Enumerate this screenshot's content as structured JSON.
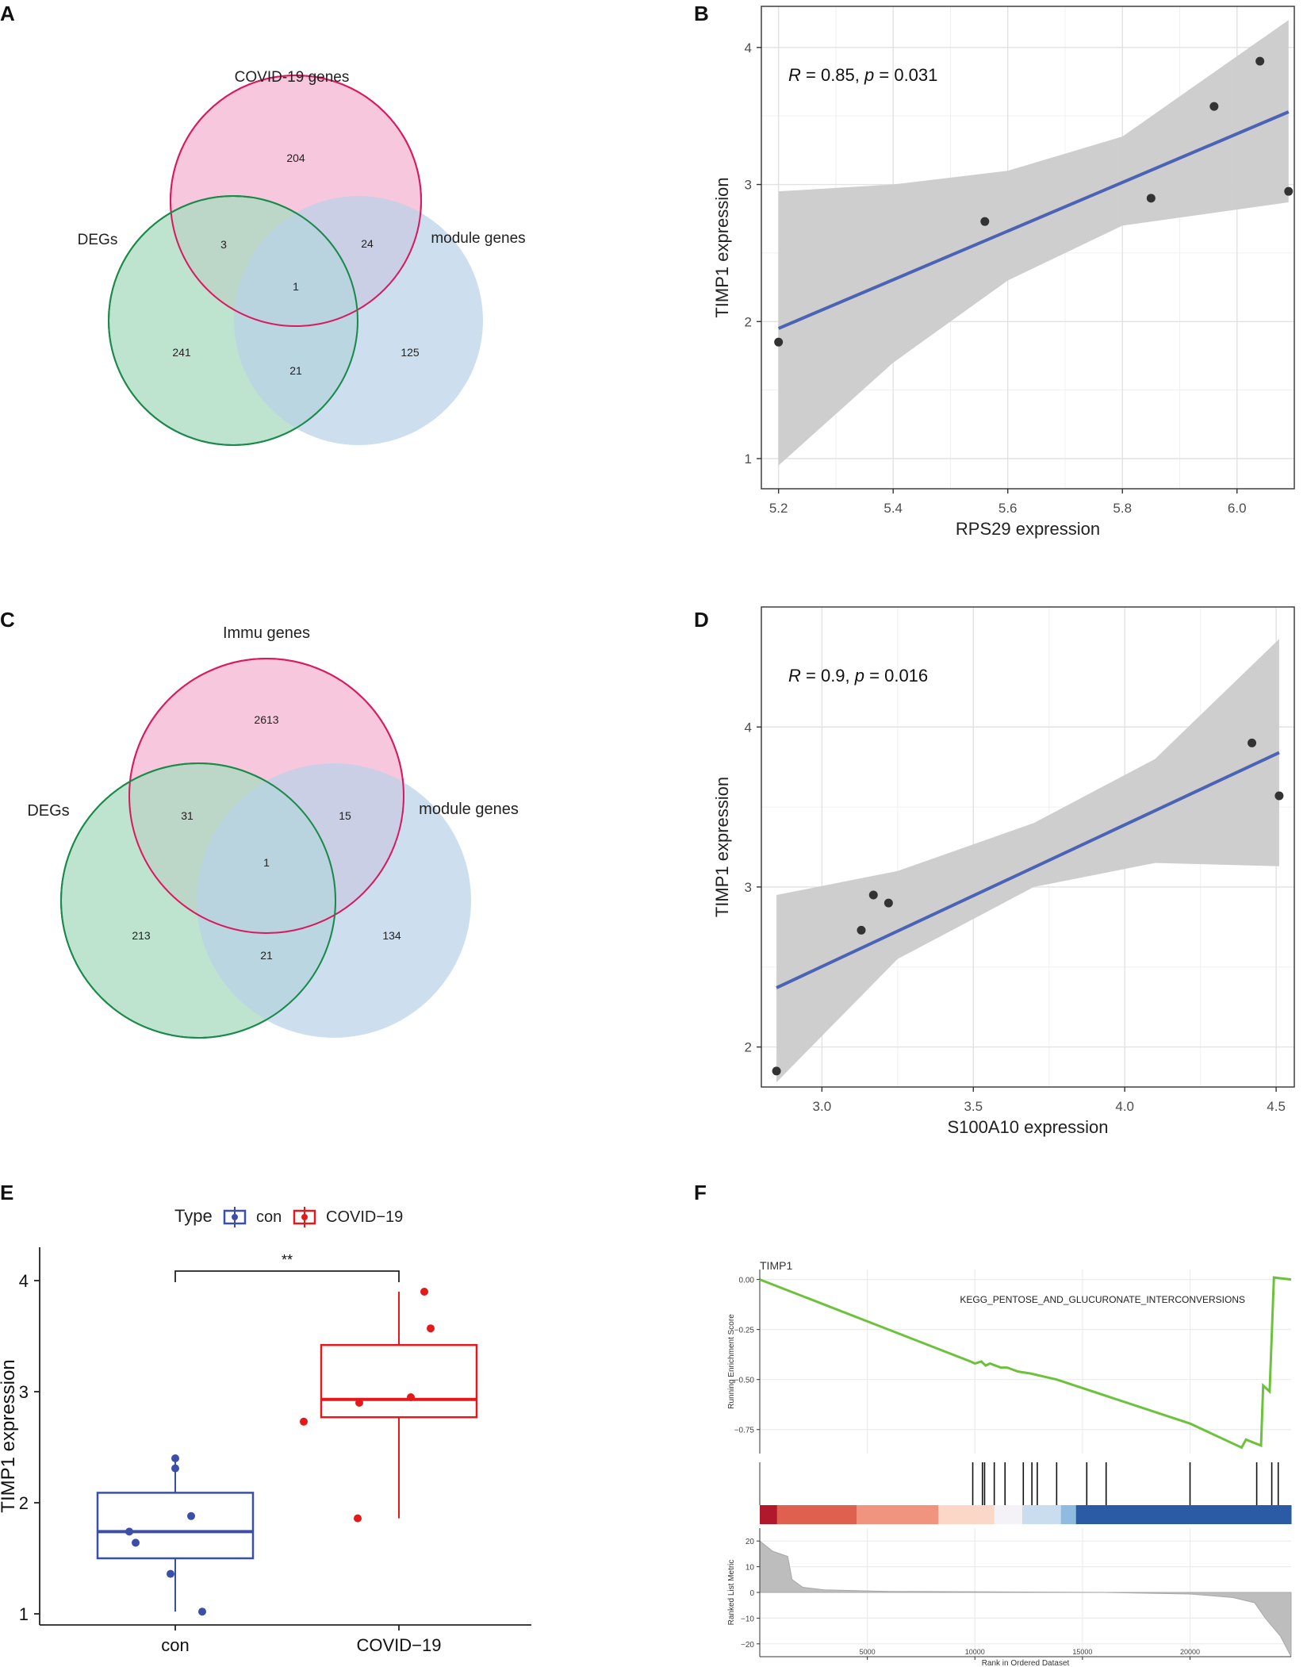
{
  "panel_labels": [
    "A",
    "B",
    "C",
    "D",
    "E",
    "F"
  ],
  "colors": {
    "venn_pink": "#f4b6d2",
    "venn_pink_stroke": "#d81b60",
    "venn_green": "#a8dbc0",
    "venn_green_stroke": "#1a8a4a",
    "venn_blue": "#b8d2e8",
    "fit_line": "#4a63b5",
    "ci_band": "#cbcbcb",
    "point": "#333333",
    "box_con": "#3b4fa8",
    "box_covid": "#e31a1c",
    "gsea_curve": "#6cc23b"
  },
  "chart_data": [
    {
      "panel": "A",
      "type": "venn",
      "sets": [
        "COVID-19 genes",
        "DEGs",
        "module genes"
      ],
      "regions": {
        "only_top": "204",
        "top_left": "3",
        "top_right": "24",
        "all": "1",
        "only_left": "241",
        "left_right": "21",
        "only_right": "125"
      }
    },
    {
      "panel": "B",
      "type": "scatter",
      "xlabel": "RPS29 expression",
      "ylabel": "TIMP1 expression",
      "annotation": {
        "r_label": "R",
        "r_text": " = 0.85, ",
        "p_label": "p",
        "p_text": " = 0.031"
      },
      "xlim": [
        5.17,
        6.1
      ],
      "ylim": [
        0.78,
        4.3
      ],
      "xticks": [
        5.2,
        5.4,
        5.6,
        5.8,
        6.0
      ],
      "xtick_labels": [
        "5.2",
        "5.4",
        "5.6",
        "5.8",
        "6.0"
      ],
      "yticks": [
        1,
        2,
        3,
        4
      ],
      "ytick_labels": [
        "1",
        "2",
        "3",
        "4"
      ],
      "points": [
        [
          5.2,
          1.85
        ],
        [
          5.56,
          2.73
        ],
        [
          5.85,
          2.9
        ],
        [
          5.96,
          3.57
        ],
        [
          6.04,
          3.9
        ],
        [
          6.09,
          2.95
        ]
      ],
      "fit": {
        "x": [
          5.2,
          6.09
        ],
        "y": [
          1.95,
          3.53
        ]
      },
      "band": {
        "x": [
          5.2,
          5.4,
          5.6,
          5.8,
          6.09
        ],
        "upper": [
          2.95,
          3.0,
          3.1,
          3.35,
          4.2
        ],
        "lower": [
          0.95,
          1.7,
          2.3,
          2.7,
          2.87
        ]
      }
    },
    {
      "panel": "C",
      "type": "venn",
      "sets": [
        "Immu genes",
        "DEGs",
        "module genes"
      ],
      "regions": {
        "only_top": "2613",
        "top_left": "31",
        "top_right": "15",
        "all": "1",
        "only_left": "213",
        "left_right": "21",
        "only_right": "134"
      }
    },
    {
      "panel": "D",
      "type": "scatter",
      "xlabel": "S100A10 expression",
      "ylabel": "TIMP1 expression",
      "annotation": {
        "r_label": "R",
        "r_text": " = 0.9, ",
        "p_label": "p",
        "p_text": " = 0.016"
      },
      "xlim": [
        2.8,
        4.56
      ],
      "ylim": [
        1.75,
        4.75
      ],
      "xticks": [
        3.0,
        3.5,
        4.0,
        4.5
      ],
      "xtick_labels": [
        "3.0",
        "3.5",
        "4.0",
        "4.5"
      ],
      "yticks": [
        2,
        3,
        4
      ],
      "ytick_labels": [
        "2",
        "3",
        "4"
      ],
      "points": [
        [
          2.85,
          1.85
        ],
        [
          3.13,
          2.73
        ],
        [
          3.17,
          2.95
        ],
        [
          3.22,
          2.9
        ],
        [
          4.42,
          3.9
        ],
        [
          4.51,
          3.57
        ]
      ],
      "fit": {
        "x": [
          2.85,
          4.51
        ],
        "y": [
          2.37,
          3.84
        ]
      },
      "band": {
        "x": [
          2.85,
          3.25,
          3.7,
          4.1,
          4.51
        ],
        "upper": [
          2.95,
          3.1,
          3.4,
          3.8,
          4.55
        ],
        "lower": [
          1.78,
          2.55,
          3.0,
          3.15,
          3.13
        ]
      }
    },
    {
      "panel": "E",
      "type": "boxplot",
      "legend_title": "Type",
      "categories": [
        "con",
        "COVID−19"
      ],
      "ylabel": "TIMP1 expression",
      "ylim": [
        0.9,
        4.3
      ],
      "yticks": [
        1,
        2,
        3,
        4
      ],
      "ytick_labels": [
        "1",
        "2",
        "3",
        "4"
      ],
      "significance": "**",
      "series": [
        {
          "name": "con",
          "q1": 1.5,
          "median": 1.74,
          "q3": 2.09,
          "whisker_low": 1.02,
          "whisker_high": 2.4,
          "points": [
            1.02,
            1.36,
            1.64,
            1.74,
            1.88,
            2.31,
            2.4
          ]
        },
        {
          "name": "COVID−19",
          "q1": 2.77,
          "median": 2.93,
          "q3": 3.42,
          "whisker_low": 1.86,
          "whisker_high": 3.9,
          "points": [
            1.86,
            2.73,
            2.9,
            2.95,
            3.57,
            3.9
          ]
        }
      ]
    },
    {
      "panel": "F",
      "type": "gsea",
      "gene": "TIMP1",
      "pathway": "KEGG_PENTOSE_AND_GLUCURONATE_INTERCONVERSIONS",
      "ylabel_top": "Running Enrichment Score",
      "ylabel_bottom": "Ranked List Metric",
      "xlabel": "Rank in Ordered Dataset",
      "xlim": [
        0,
        24700
      ],
      "es_ylim": [
        -0.87,
        0.05
      ],
      "es_ticks": [
        0.0,
        -0.25,
        -0.5,
        -0.75
      ],
      "es_tick_labels": [
        "0.00",
        "−0.25",
        "−0.50",
        "−0.75"
      ],
      "es_curve": [
        [
          0,
          0.0
        ],
        [
          9800,
          -0.41
        ],
        [
          10000,
          -0.42
        ],
        [
          10300,
          -0.41
        ],
        [
          10500,
          -0.43
        ],
        [
          10700,
          -0.42
        ],
        [
          11200,
          -0.44
        ],
        [
          11500,
          -0.44
        ],
        [
          12000,
          -0.46
        ],
        [
          12600,
          -0.47
        ],
        [
          13000,
          -0.48
        ],
        [
          13800,
          -0.5
        ],
        [
          20000,
          -0.72
        ],
        [
          22400,
          -0.84
        ],
        [
          22600,
          -0.8
        ],
        [
          23300,
          -0.83
        ],
        [
          23400,
          -0.53
        ],
        [
          23700,
          -0.56
        ],
        [
          23900,
          0.01
        ],
        [
          24700,
          0.0
        ]
      ],
      "hits": [
        9900,
        10350,
        10450,
        10900,
        11400,
        12250,
        12650,
        12900,
        13800,
        15200,
        16100,
        20000,
        23100,
        23800,
        24100
      ],
      "rank_xticks": [
        5000,
        10000,
        15000,
        20000
      ],
      "rank_xtick_labels": [
        "5000",
        "10000",
        "15000",
        "20000"
      ],
      "metric_ylim": [
        -25,
        25
      ],
      "metric_ticks": [
        20,
        10,
        0,
        -10,
        -20
      ],
      "metric_tick_labels": [
        "20",
        "10",
        "0",
        "−10",
        "−20"
      ],
      "metric_curve": [
        [
          0,
          20
        ],
        [
          600,
          16
        ],
        [
          1300,
          14
        ],
        [
          1500,
          5
        ],
        [
          2000,
          2
        ],
        [
          3000,
          1
        ],
        [
          6000,
          0.4
        ],
        [
          16000,
          0
        ],
        [
          20000,
          -0.6
        ],
        [
          22000,
          -2
        ],
        [
          23000,
          -4
        ],
        [
          23500,
          -10
        ],
        [
          24200,
          -17
        ],
        [
          24700,
          -25
        ]
      ],
      "heat_colors": [
        "#b2182b",
        "#e06050",
        "#f09480",
        "#fbd7c8",
        "#f4f2f7",
        "#c9ddef",
        "#8fbbe0",
        "#2c5ba5"
      ],
      "heat_stops": [
        0,
        800,
        4500,
        8300,
        10900,
        12200,
        14000,
        14700,
        24700
      ]
    }
  ]
}
